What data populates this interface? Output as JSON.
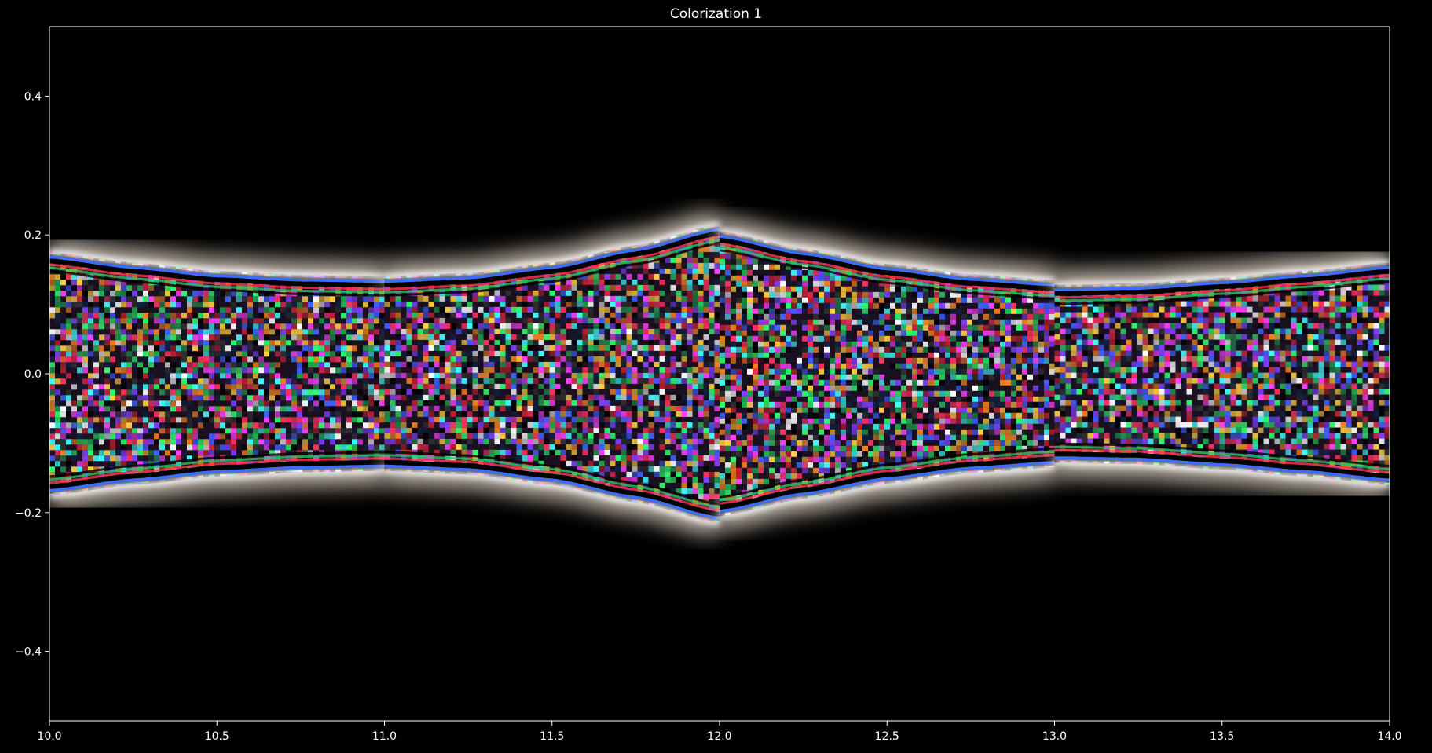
{
  "chart_data": {
    "type": "heatmap",
    "title": "Colorization 1",
    "xlabel": "",
    "ylabel": "",
    "xlim": [
      10.0,
      14.0
    ],
    "ylim": [
      -0.5,
      0.5
    ],
    "x_ticks": [
      "10.0",
      "10.5",
      "11.0",
      "11.5",
      "12.0",
      "12.5",
      "13.0",
      "13.5",
      "14.0"
    ],
    "y_ticks": [
      "−0.4",
      "−0.2",
      "0.0",
      "0.2",
      "0.4"
    ],
    "x_tick_values": [
      10.0,
      10.5,
      11.0,
      11.5,
      12.0,
      12.5,
      13.0,
      13.5,
      14.0
    ],
    "y_tick_values": [
      -0.4,
      -0.2,
      0.0,
      0.2,
      0.4
    ],
    "segment_breaks": [
      10.0,
      11.0,
      12.0,
      13.0,
      14.0
    ],
    "envelope_half_width": {
      "x": [
        10.0,
        10.25,
        10.5,
        10.75,
        11.0,
        11.0,
        11.25,
        11.5,
        11.75,
        12.0,
        12.0,
        12.25,
        12.5,
        12.75,
        13.0,
        13.0,
        13.25,
        13.5,
        13.75,
        14.0
      ],
      "y": [
        0.175,
        0.16,
        0.148,
        0.142,
        0.14,
        0.14,
        0.145,
        0.16,
        0.185,
        0.215,
        0.205,
        0.18,
        0.158,
        0.143,
        0.135,
        0.128,
        0.13,
        0.138,
        0.148,
        0.16
      ]
    },
    "colormap": "cyclic colorization (noise interior, white-blue glow boundary)",
    "background": "#000000"
  }
}
